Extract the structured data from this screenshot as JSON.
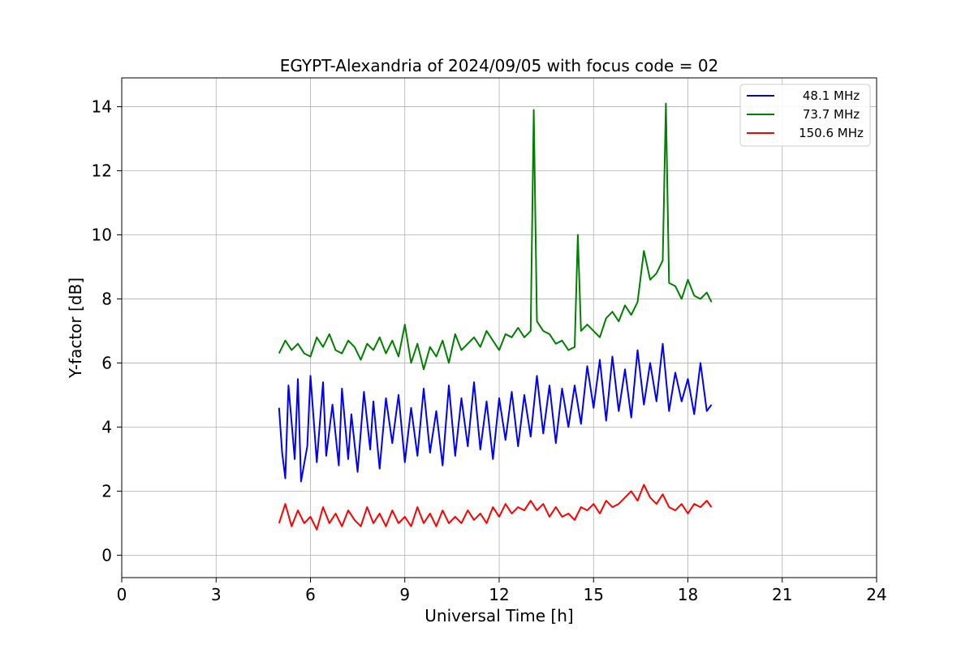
{
  "chart_data": {
    "type": "line",
    "title": "EGYPT-Alexandria of 2024/09/05 with focus code = 02",
    "xlabel": "Universal Time [h]",
    "ylabel": "Y-factor [dB]",
    "xlim": [
      0,
      24
    ],
    "ylim": [
      -0.7,
      14.9
    ],
    "xticks": [
      0,
      3,
      6,
      9,
      12,
      15,
      18,
      21,
      24
    ],
    "yticks": [
      0,
      2,
      4,
      6,
      8,
      10,
      12,
      14
    ],
    "grid": true,
    "legend_position": "top-right",
    "series": [
      {
        "name": "48.1 MHz",
        "color": "#0000ff",
        "x": [
          5.0,
          5.1,
          5.2,
          5.3,
          5.5,
          5.6,
          5.7,
          5.9,
          6.0,
          6.2,
          6.4,
          6.5,
          6.7,
          6.9,
          7.0,
          7.2,
          7.3,
          7.5,
          7.7,
          7.9,
          8.0,
          8.2,
          8.4,
          8.6,
          8.8,
          9.0,
          9.2,
          9.4,
          9.6,
          9.8,
          10.0,
          10.2,
          10.4,
          10.6,
          10.8,
          11.0,
          11.2,
          11.4,
          11.6,
          11.8,
          12.0,
          12.2,
          12.4,
          12.6,
          12.8,
          13.0,
          13.2,
          13.4,
          13.6,
          13.8,
          14.0,
          14.2,
          14.4,
          14.6,
          14.8,
          15.0,
          15.2,
          15.4,
          15.6,
          15.8,
          16.0,
          16.2,
          16.4,
          16.6,
          16.8,
          17.0,
          17.2,
          17.4,
          17.6,
          17.8,
          18.0,
          18.2,
          18.4,
          18.6,
          18.75
        ],
        "y": [
          4.6,
          3.2,
          2.4,
          5.3,
          3.0,
          5.5,
          2.3,
          3.4,
          5.6,
          2.9,
          5.4,
          3.1,
          4.7,
          2.8,
          5.2,
          3.0,
          4.4,
          2.6,
          5.1,
          3.3,
          4.8,
          2.7,
          4.9,
          3.5,
          5.0,
          2.9,
          4.6,
          3.1,
          5.2,
          3.2,
          4.5,
          2.8,
          5.3,
          3.1,
          4.9,
          3.4,
          5.4,
          3.3,
          4.8,
          3.0,
          4.9,
          3.6,
          5.1,
          3.4,
          5.0,
          3.7,
          5.6,
          3.8,
          5.3,
          3.5,
          5.2,
          4.0,
          5.3,
          4.1,
          5.9,
          4.6,
          6.1,
          4.2,
          6.2,
          4.5,
          5.8,
          4.3,
          6.4,
          4.7,
          6.0,
          4.8,
          6.6,
          4.5,
          5.7,
          4.8,
          5.5,
          4.4,
          6.0,
          4.5,
          4.7
        ]
      },
      {
        "name": "73.7 MHz",
        "color": "#008000",
        "x": [
          5.0,
          5.2,
          5.4,
          5.6,
          5.8,
          6.0,
          6.2,
          6.4,
          6.6,
          6.8,
          7.0,
          7.2,
          7.4,
          7.6,
          7.8,
          8.0,
          8.2,
          8.4,
          8.6,
          8.8,
          9.0,
          9.2,
          9.4,
          9.6,
          9.8,
          10.0,
          10.2,
          10.4,
          10.6,
          10.8,
          11.0,
          11.2,
          11.4,
          11.6,
          11.8,
          12.0,
          12.2,
          12.4,
          12.6,
          12.8,
          13.0,
          13.1,
          13.2,
          13.4,
          13.6,
          13.8,
          14.0,
          14.2,
          14.4,
          14.5,
          14.6,
          14.8,
          15.0,
          15.2,
          15.4,
          15.6,
          15.8,
          16.0,
          16.2,
          16.4,
          16.6,
          16.8,
          17.0,
          17.2,
          17.3,
          17.4,
          17.6,
          17.8,
          18.0,
          18.2,
          18.4,
          18.6,
          18.75
        ],
        "y": [
          6.3,
          6.7,
          6.4,
          6.6,
          6.3,
          6.2,
          6.8,
          6.5,
          6.9,
          6.4,
          6.3,
          6.7,
          6.5,
          6.1,
          6.6,
          6.4,
          6.8,
          6.3,
          6.7,
          6.2,
          7.2,
          6.0,
          6.6,
          5.8,
          6.5,
          6.2,
          6.7,
          6.0,
          6.9,
          6.4,
          6.6,
          6.8,
          6.5,
          7.0,
          6.7,
          6.4,
          6.9,
          6.8,
          7.1,
          6.8,
          7.0,
          13.9,
          7.3,
          7.0,
          6.9,
          6.6,
          6.7,
          6.4,
          6.5,
          10.0,
          7.0,
          7.2,
          7.0,
          6.8,
          7.4,
          7.6,
          7.3,
          7.8,
          7.5,
          7.9,
          9.5,
          8.6,
          8.8,
          9.2,
          14.1,
          8.5,
          8.4,
          8.0,
          8.6,
          8.1,
          8.0,
          8.2,
          7.9
        ]
      },
      {
        "name": "150.6 MHz",
        "color": "#ff0000",
        "x": [
          5.0,
          5.2,
          5.4,
          5.6,
          5.8,
          6.0,
          6.2,
          6.4,
          6.6,
          6.8,
          7.0,
          7.2,
          7.4,
          7.6,
          7.8,
          8.0,
          8.2,
          8.4,
          8.6,
          8.8,
          9.0,
          9.2,
          9.4,
          9.6,
          9.8,
          10.0,
          10.2,
          10.4,
          10.6,
          10.8,
          11.0,
          11.2,
          11.4,
          11.6,
          11.8,
          12.0,
          12.2,
          12.4,
          12.6,
          12.8,
          13.0,
          13.2,
          13.4,
          13.6,
          13.8,
          14.0,
          14.2,
          14.4,
          14.6,
          14.8,
          15.0,
          15.2,
          15.4,
          15.6,
          15.8,
          16.0,
          16.2,
          16.4,
          16.6,
          16.8,
          17.0,
          17.2,
          17.4,
          17.6,
          17.8,
          18.0,
          18.2,
          18.4,
          18.6,
          18.75
        ],
        "y": [
          1.0,
          1.6,
          0.9,
          1.4,
          1.0,
          1.2,
          0.8,
          1.5,
          1.0,
          1.3,
          0.9,
          1.4,
          1.1,
          0.9,
          1.5,
          1.0,
          1.3,
          0.9,
          1.4,
          1.0,
          1.2,
          0.9,
          1.5,
          1.0,
          1.3,
          0.9,
          1.4,
          1.0,
          1.2,
          1.0,
          1.4,
          1.1,
          1.3,
          1.0,
          1.5,
          1.2,
          1.6,
          1.3,
          1.5,
          1.4,
          1.7,
          1.4,
          1.6,
          1.2,
          1.5,
          1.2,
          1.3,
          1.1,
          1.5,
          1.4,
          1.6,
          1.3,
          1.7,
          1.5,
          1.6,
          1.8,
          2.0,
          1.7,
          2.2,
          1.8,
          1.6,
          1.9,
          1.5,
          1.4,
          1.6,
          1.3,
          1.6,
          1.5,
          1.7,
          1.5
        ]
      }
    ]
  }
}
